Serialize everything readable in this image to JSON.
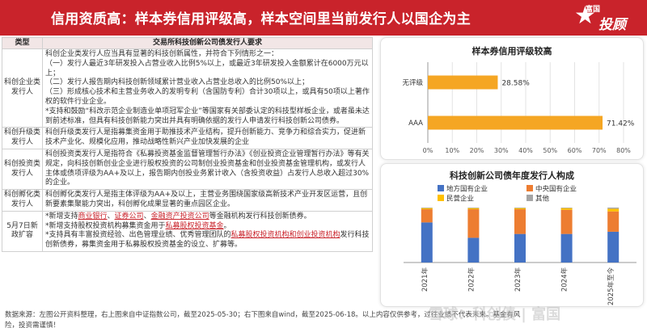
{
  "header": {
    "title": "信用资质高：样本券信用评级高，样本空间里当前发行人以国企为主",
    "brand_small": "富国",
    "brand_big": "投顾"
  },
  "table": {
    "col_type": "类型",
    "col_req": "交易所科技创新公司债发行人要求",
    "rows": [
      {
        "type": "科创企业类发行人",
        "lines": [
          "科创企业类发行人应当具有显著的科技创新属性，并符合下列情形之一：",
          "（一）发行人最近3年研发投入占营业收入比例5%以上，或最近3年研发投入金额累计在6000万元以上；",
          "（二）发行人报告期内科技创新领域累计营业收入占营业总收入的比例50%以上；",
          "（三）形成核心技术和主营业务收入的发明专利（含国防专利）合计30项以上，或具有50项以上著作权的软件行业企业。",
          "*支持和鼓励“科改示范企业制造业单项冠军企业”等国家有关部委认定的科技型样板企业，或者虽未达到前述标准，但具有科技创新能力突出并具有明确依据的发行人申请发行科技创新公司债券。"
        ]
      },
      {
        "type": "科创升级类发行人",
        "lines": [
          "科创升级类发行人是指募集资金用于助推技术产业结构，提升创新能力、竞争力和综合实力，促进新技术产业化、规模化应用，推动战略性新兴产业加快发展的企业"
        ]
      },
      {
        "type": "科创投资类发行人",
        "lines": [
          "科创投资类发行人是指符合《私募投资基金监督管理暂行办法》《创业投资企业管理暂行办法》等有关规定，向科技创新创业企业进行股权投资的公司制创业投资基金和创业投资基金管理机构，或发行人主体或债项评级为AA+及以上，报告期内创投业务累计收入（含投资收益）占发行人总收入超过30%的企业。"
        ]
      },
      {
        "type": "科创孵化类发行人",
        "lines": [
          "科创孵化类发行人是指主体评级为AA+及以上，主营业务围绕国家级高新技术产业开发区运营，且创新要素集聚能力突出，科创孵化成果显著的重点园区企业。"
        ]
      }
    ],
    "last_row": {
      "type": "5月7日新政扩容",
      "p1_a": "*新增支持",
      "p1_hl1": "商业银行",
      "p1_sep1": "、",
      "p1_hl2": "证券公司",
      "p1_sep2": "、",
      "p1_hl3": "金融资产投资公司",
      "p1_b": "等金融机构发行科技创新债券。",
      "p2_a": "*新增支持股权投资机构募集资金用于",
      "p2_hl": "私募股权投资基金",
      "p2_b": "。",
      "p3_a": "*支持具有丰富投资经验、出色管理业绩、优秀管理团队的",
      "p3_hl": "私募股权投资机构和创业投资机构",
      "p3_b": "发行科技创新债券，募集资金用于私募股权投资基金的设立、扩募等。"
    }
  },
  "rating_chart": {
    "title": "样本券信用评级较高",
    "chart_data": {
      "type": "bar",
      "orientation": "horizontal",
      "categories": [
        "无评级",
        "AAA"
      ],
      "values": [
        28.58,
        71.42
      ],
      "value_labels": [
        "28.58%",
        "71.42%"
      ],
      "xlim": [
        0,
        80
      ],
      "xticks": [
        "0%",
        "10%",
        "20%",
        "30%",
        "40%",
        "50%",
        "60%",
        "70%",
        "80%"
      ],
      "color": "#f5a623"
    }
  },
  "issuer_chart": {
    "title": "科技创新公司债年度发行人构成",
    "chart_data": {
      "type": "bar",
      "stacked": true,
      "categories": [
        "2021年",
        "2022年",
        "2023年",
        "2024年",
        "2025年至今"
      ],
      "ylim": [
        0,
        1
      ],
      "series": [
        {
          "name": "地方国有企业",
          "color": "#4472c4",
          "values": [
            0.73,
            0.45,
            0.52,
            0.52,
            0.56
          ]
        },
        {
          "name": "中央国有企业",
          "color": "#ed7d31",
          "values": [
            0.24,
            0.52,
            0.45,
            0.44,
            0.37
          ]
        },
        {
          "name": "民营企业",
          "color": "#ffc000",
          "values": [
            0.02,
            0.02,
            0.02,
            0.03,
            0.05
          ]
        },
        {
          "name": "其他",
          "color": "#a5a5a5",
          "values": [
            0.01,
            0.01,
            0.01,
            0.01,
            0.02
          ]
        }
      ]
    }
  },
  "footer": {
    "line1": "数据来源：左图公开资料整理，右上图来自中证指数公司，截至2025-05-30；右下图来自wind，截至2025-06-18。以上内容仅供参考，过往业绩不代表未来。基金有风",
    "line2": "险，投资需谨慎！"
  },
  "watermark": "雪球：科创债 | 富国"
}
